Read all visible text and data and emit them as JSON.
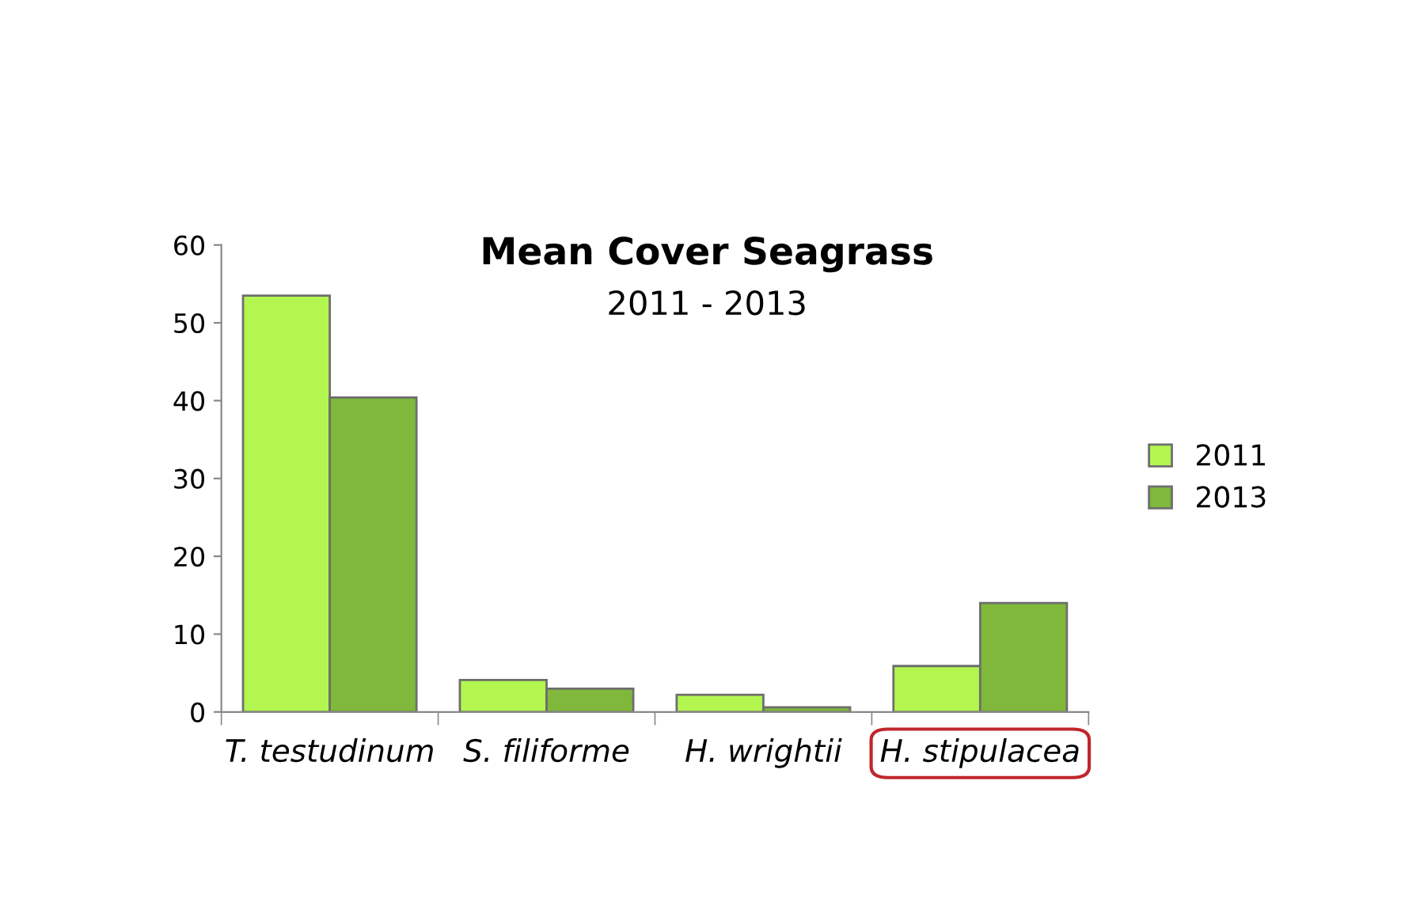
{
  "chart_data": {
    "type": "bar",
    "title": "Mean Cover Seagrass",
    "subtitle": "2011 - 2013",
    "categories": [
      "T. testudinum",
      "S. filiforme",
      "H. wrightii",
      "H. stipulacea"
    ],
    "series": [
      {
        "name": "2011",
        "color": "#b2f64f",
        "values": [
          53.5,
          4.1,
          2.2,
          5.9
        ]
      },
      {
        "name": "2013",
        "color": "#7fb83a",
        "values": [
          40.4,
          3.0,
          0.6,
          14.0
        ]
      }
    ],
    "ylim": [
      0,
      60
    ],
    "yticks": [
      0,
      10,
      20,
      30,
      40,
      50,
      60
    ],
    "grid": false,
    "legend": "right"
  }
}
